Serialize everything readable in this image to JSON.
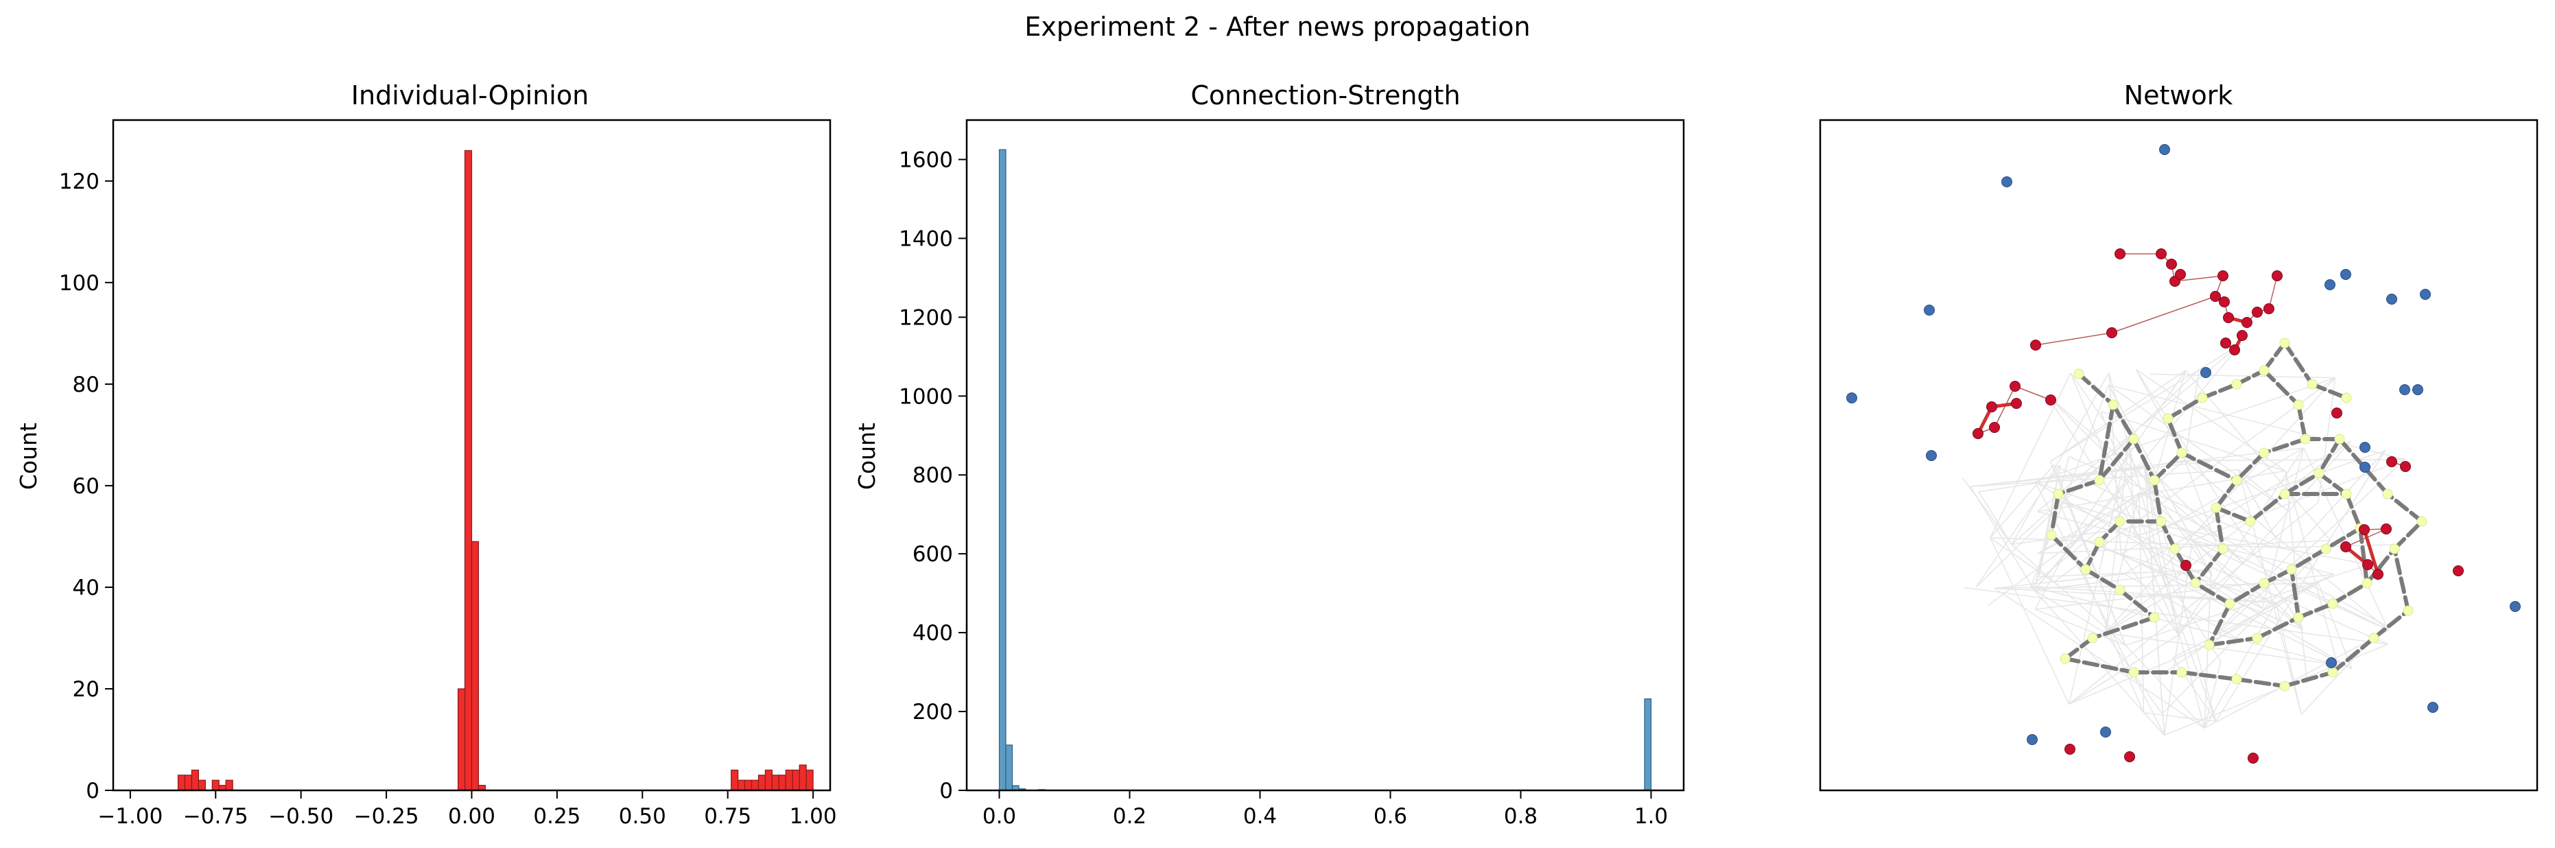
{
  "figure": {
    "suptitle": "Experiment 2 - After news propagation"
  },
  "chart_data": [
    {
      "type": "bar",
      "title": "Individual-Opinion",
      "xlabel": "",
      "ylabel": "Count",
      "xlim": [
        -1.05,
        1.05
      ],
      "ylim": [
        0,
        132
      ],
      "xticks": [
        -1.0,
        -0.75,
        -0.5,
        -0.25,
        0.0,
        0.25,
        0.5,
        0.75,
        1.0
      ],
      "xtick_labels": [
        "−1.00",
        "−0.75",
        "−0.50",
        "−0.25",
        "0.00",
        "0.25",
        "0.50",
        "0.75",
        "1.00"
      ],
      "yticks": [
        0,
        20,
        40,
        60,
        80,
        100,
        120
      ],
      "ytick_labels": [
        "0",
        "20",
        "40",
        "60",
        "80",
        "100",
        "120"
      ],
      "bin_width": 0.02,
      "bin_starts": [
        -0.86,
        -0.84,
        -0.82,
        -0.8,
        -0.76,
        -0.74,
        -0.72,
        -0.04,
        -0.02,
        0.0,
        0.02,
        0.76,
        0.78,
        0.8,
        0.82,
        0.84,
        0.86,
        0.88,
        0.9,
        0.92,
        0.94,
        0.96,
        0.98
      ],
      "values": [
        3,
        3,
        4,
        2,
        2,
        1,
        2,
        20,
        126,
        49,
        1,
        4,
        2,
        2,
        2,
        3,
        4,
        3,
        3,
        4,
        4,
        5,
        4
      ],
      "color": "#ee2c2c",
      "edgecolor": "#8b1a1a",
      "grid": false
    },
    {
      "type": "bar",
      "title": "Connection-Strength",
      "xlabel": "",
      "ylabel": "Count",
      "xlim": [
        -0.05,
        1.05
      ],
      "ylim": [
        0,
        1700
      ],
      "xticks": [
        0.0,
        0.2,
        0.4,
        0.6,
        0.8,
        1.0
      ],
      "xtick_labels": [
        "0.0",
        "0.2",
        "0.4",
        "0.6",
        "0.8",
        "1.0"
      ],
      "yticks": [
        0,
        200,
        400,
        600,
        800,
        1000,
        1200,
        1400,
        1600
      ],
      "ytick_labels": [
        "0",
        "200",
        "400",
        "600",
        "800",
        "1000",
        "1200",
        "1400",
        "1600"
      ],
      "bin_width": 0.01,
      "bin_starts": [
        0.0,
        0.01,
        0.02,
        0.03,
        0.06,
        0.99
      ],
      "values": [
        1625,
        115,
        12,
        4,
        2,
        232
      ],
      "color": "#5b9bc4",
      "edgecolor": "#2f5f80",
      "grid": false
    },
    {
      "type": "network",
      "title": "Network",
      "node_colors": {
        "positive": "#c8102e",
        "negative": "#3f6fb0",
        "informed": "#f5ffb0"
      },
      "edge_colors": {
        "strong": "#7a7a7a",
        "weak": "#e6e6e6"
      }
    }
  ]
}
